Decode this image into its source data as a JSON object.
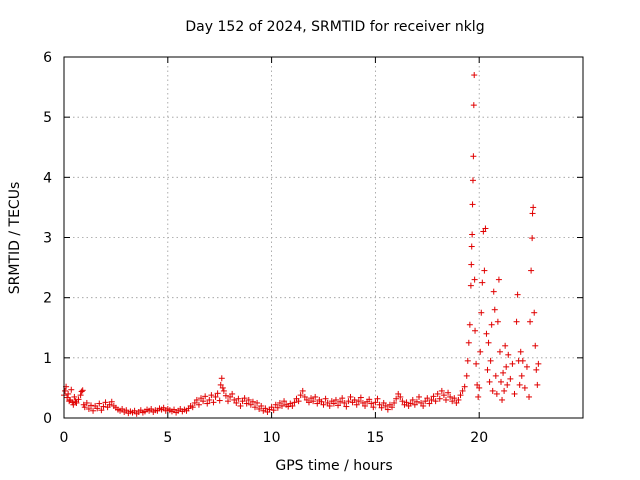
{
  "chart_data": {
    "type": "scatter",
    "title": "Day 152 of 2024, SRMTID for receiver nklg",
    "xlabel": "GPS time / hours",
    "ylabel": "SRMTID / TECUs",
    "xlim": [
      0,
      25
    ],
    "ylim": [
      0,
      6
    ],
    "xticks": [
      0,
      5,
      10,
      15,
      20
    ],
    "yticks": [
      0,
      1,
      2,
      3,
      4,
      5,
      6
    ],
    "grid": true,
    "marker": "+",
    "color": "#e00000",
    "series": [
      {
        "name": "SRMTID",
        "points": [
          [
            0.0,
            0.38
          ],
          [
            0.05,
            0.45
          ],
          [
            0.1,
            0.52
          ],
          [
            0.15,
            0.34
          ],
          [
            0.2,
            0.4
          ],
          [
            0.25,
            0.28
          ],
          [
            0.3,
            0.3
          ],
          [
            0.35,
            0.47
          ],
          [
            0.4,
            0.26
          ],
          [
            0.45,
            0.22
          ],
          [
            0.5,
            0.35
          ],
          [
            0.55,
            0.28
          ],
          [
            0.6,
            0.25
          ],
          [
            0.7,
            0.31
          ],
          [
            0.8,
            0.38
          ],
          [
            0.85,
            0.44
          ],
          [
            0.9,
            0.46
          ],
          [
            0.95,
            0.22
          ],
          [
            1.0,
            0.18
          ],
          [
            1.1,
            0.25
          ],
          [
            1.2,
            0.15
          ],
          [
            1.3,
            0.21
          ],
          [
            1.4,
            0.12
          ],
          [
            1.5,
            0.2
          ],
          [
            1.6,
            0.16
          ],
          [
            1.7,
            0.24
          ],
          [
            1.8,
            0.13
          ],
          [
            1.9,
            0.19
          ],
          [
            2.0,
            0.26
          ],
          [
            2.1,
            0.18
          ],
          [
            2.2,
            0.22
          ],
          [
            2.3,
            0.27
          ],
          [
            2.4,
            0.2
          ],
          [
            2.5,
            0.17
          ],
          [
            2.6,
            0.14
          ],
          [
            2.7,
            0.12
          ],
          [
            2.8,
            0.15
          ],
          [
            2.9,
            0.1
          ],
          [
            3.0,
            0.13
          ],
          [
            3.1,
            0.08
          ],
          [
            3.2,
            0.11
          ],
          [
            3.3,
            0.09
          ],
          [
            3.4,
            0.12
          ],
          [
            3.5,
            0.07
          ],
          [
            3.6,
            0.1
          ],
          [
            3.7,
            0.13
          ],
          [
            3.8,
            0.09
          ],
          [
            3.9,
            0.11
          ],
          [
            4.0,
            0.14
          ],
          [
            4.1,
            0.12
          ],
          [
            4.2,
            0.15
          ],
          [
            4.3,
            0.1
          ],
          [
            4.4,
            0.13
          ],
          [
            4.5,
            0.12
          ],
          [
            4.6,
            0.16
          ],
          [
            4.7,
            0.14
          ],
          [
            4.8,
            0.17
          ],
          [
            4.9,
            0.12
          ],
          [
            5.0,
            0.15
          ],
          [
            5.1,
            0.13
          ],
          [
            5.2,
            0.11
          ],
          [
            5.3,
            0.14
          ],
          [
            5.4,
            0.09
          ],
          [
            5.5,
            0.12
          ],
          [
            5.6,
            0.15
          ],
          [
            5.7,
            0.11
          ],
          [
            5.8,
            0.14
          ],
          [
            5.9,
            0.12
          ],
          [
            6.0,
            0.16
          ],
          [
            6.1,
            0.2
          ],
          [
            6.2,
            0.18
          ],
          [
            6.3,
            0.25
          ],
          [
            6.4,
            0.3
          ],
          [
            6.5,
            0.22
          ],
          [
            6.6,
            0.33
          ],
          [
            6.7,
            0.28
          ],
          [
            6.8,
            0.36
          ],
          [
            6.9,
            0.24
          ],
          [
            7.0,
            0.3
          ],
          [
            7.1,
            0.38
          ],
          [
            7.2,
            0.26
          ],
          [
            7.3,
            0.35
          ],
          [
            7.4,
            0.41
          ],
          [
            7.5,
            0.29
          ],
          [
            7.55,
            0.55
          ],
          [
            7.6,
            0.66
          ],
          [
            7.65,
            0.5
          ],
          [
            7.7,
            0.45
          ],
          [
            7.8,
            0.37
          ],
          [
            7.9,
            0.28
          ],
          [
            8.0,
            0.35
          ],
          [
            8.1,
            0.4
          ],
          [
            8.2,
            0.3
          ],
          [
            8.3,
            0.25
          ],
          [
            8.4,
            0.32
          ],
          [
            8.5,
            0.2
          ],
          [
            8.6,
            0.28
          ],
          [
            8.7,
            0.33
          ],
          [
            8.8,
            0.24
          ],
          [
            8.9,
            0.3
          ],
          [
            9.0,
            0.22
          ],
          [
            9.1,
            0.27
          ],
          [
            9.2,
            0.18
          ],
          [
            9.3,
            0.25
          ],
          [
            9.4,
            0.15
          ],
          [
            9.5,
            0.2
          ],
          [
            9.6,
            0.12
          ],
          [
            9.7,
            0.16
          ],
          [
            9.8,
            0.1
          ],
          [
            9.9,
            0.14
          ],
          [
            10.0,
            0.18
          ],
          [
            10.1,
            0.13
          ],
          [
            10.2,
            0.22
          ],
          [
            10.3,
            0.17
          ],
          [
            10.4,
            0.25
          ],
          [
            10.5,
            0.2
          ],
          [
            10.6,
            0.28
          ],
          [
            10.7,
            0.22
          ],
          [
            10.8,
            0.19
          ],
          [
            10.9,
            0.24
          ],
          [
            11.0,
            0.2
          ],
          [
            11.1,
            0.26
          ],
          [
            11.2,
            0.32
          ],
          [
            11.3,
            0.28
          ],
          [
            11.4,
            0.38
          ],
          [
            11.5,
            0.45
          ],
          [
            11.6,
            0.35
          ],
          [
            11.7,
            0.3
          ],
          [
            11.8,
            0.26
          ],
          [
            11.9,
            0.33
          ],
          [
            12.0,
            0.28
          ],
          [
            12.1,
            0.35
          ],
          [
            12.2,
            0.24
          ],
          [
            12.3,
            0.3
          ],
          [
            12.4,
            0.27
          ],
          [
            12.5,
            0.22
          ],
          [
            12.6,
            0.32
          ],
          [
            12.7,
            0.25
          ],
          [
            12.8,
            0.2
          ],
          [
            12.9,
            0.28
          ],
          [
            13.0,
            0.24
          ],
          [
            13.1,
            0.3
          ],
          [
            13.2,
            0.21
          ],
          [
            13.3,
            0.27
          ],
          [
            13.4,
            0.33
          ],
          [
            13.5,
            0.25
          ],
          [
            13.6,
            0.19
          ],
          [
            13.7,
            0.28
          ],
          [
            13.8,
            0.35
          ],
          [
            13.9,
            0.26
          ],
          [
            14.0,
            0.3
          ],
          [
            14.1,
            0.22
          ],
          [
            14.2,
            0.28
          ],
          [
            14.3,
            0.34
          ],
          [
            14.4,
            0.25
          ],
          [
            14.5,
            0.2
          ],
          [
            14.6,
            0.27
          ],
          [
            14.7,
            0.31
          ],
          [
            14.8,
            0.24
          ],
          [
            14.9,
            0.18
          ],
          [
            15.0,
            0.26
          ],
          [
            15.1,
            0.32
          ],
          [
            15.2,
            0.22
          ],
          [
            15.3,
            0.17
          ],
          [
            15.4,
            0.25
          ],
          [
            15.5,
            0.2
          ],
          [
            15.6,
            0.14
          ],
          [
            15.7,
            0.22
          ],
          [
            15.8,
            0.18
          ],
          [
            15.9,
            0.25
          ],
          [
            16.0,
            0.32
          ],
          [
            16.1,
            0.4
          ],
          [
            16.2,
            0.35
          ],
          [
            16.3,
            0.28
          ],
          [
            16.4,
            0.22
          ],
          [
            16.5,
            0.26
          ],
          [
            16.6,
            0.2
          ],
          [
            16.7,
            0.24
          ],
          [
            16.8,
            0.3
          ],
          [
            16.9,
            0.22
          ],
          [
            17.0,
            0.27
          ],
          [
            17.1,
            0.35
          ],
          [
            17.2,
            0.25
          ],
          [
            17.3,
            0.2
          ],
          [
            17.4,
            0.28
          ],
          [
            17.5,
            0.33
          ],
          [
            17.6,
            0.24
          ],
          [
            17.7,
            0.3
          ],
          [
            17.8,
            0.36
          ],
          [
            17.9,
            0.28
          ],
          [
            18.0,
            0.4
          ],
          [
            18.1,
            0.32
          ],
          [
            18.2,
            0.45
          ],
          [
            18.3,
            0.38
          ],
          [
            18.4,
            0.3
          ],
          [
            18.5,
            0.42
          ],
          [
            18.6,
            0.35
          ],
          [
            18.7,
            0.28
          ],
          [
            18.8,
            0.33
          ],
          [
            18.9,
            0.25
          ],
          [
            19.0,
            0.3
          ],
          [
            19.1,
            0.38
          ],
          [
            19.2,
            0.45
          ],
          [
            19.3,
            0.52
          ],
          [
            19.4,
            0.7
          ],
          [
            19.45,
            0.95
          ],
          [
            19.5,
            1.25
          ],
          [
            19.55,
            1.55
          ],
          [
            19.6,
            2.2
          ],
          [
            19.62,
            2.55
          ],
          [
            19.64,
            2.85
          ],
          [
            19.66,
            3.05
          ],
          [
            19.68,
            3.55
          ],
          [
            19.7,
            3.95
          ],
          [
            19.72,
            4.35
          ],
          [
            19.74,
            5.2
          ],
          [
            19.76,
            5.7
          ],
          [
            19.78,
            2.3
          ],
          [
            19.8,
            1.45
          ],
          [
            19.85,
            0.9
          ],
          [
            19.9,
            0.55
          ],
          [
            19.95,
            0.35
          ],
          [
            20.0,
            0.5
          ],
          [
            20.05,
            1.1
          ],
          [
            20.1,
            1.75
          ],
          [
            20.15,
            2.25
          ],
          [
            20.2,
            3.1
          ],
          [
            20.25,
            2.45
          ],
          [
            20.3,
            3.15
          ],
          [
            20.35,
            1.4
          ],
          [
            20.4,
            0.8
          ],
          [
            20.45,
            1.25
          ],
          [
            20.5,
            0.6
          ],
          [
            20.55,
            0.95
          ],
          [
            20.6,
            1.55
          ],
          [
            20.65,
            0.45
          ],
          [
            20.7,
            2.1
          ],
          [
            20.75,
            1.8
          ],
          [
            20.8,
            0.7
          ],
          [
            20.85,
            0.4
          ],
          [
            20.9,
            1.6
          ],
          [
            20.95,
            2.3
          ],
          [
            21.0,
            1.1
          ],
          [
            21.05,
            0.6
          ],
          [
            21.1,
            0.3
          ],
          [
            21.15,
            0.75
          ],
          [
            21.2,
            0.45
          ],
          [
            21.25,
            1.2
          ],
          [
            21.3,
            0.85
          ],
          [
            21.35,
            0.55
          ],
          [
            21.4,
            1.05
          ],
          [
            21.5,
            0.65
          ],
          [
            21.6,
            0.9
          ],
          [
            21.7,
            0.4
          ],
          [
            21.8,
            1.6
          ],
          [
            21.85,
            2.05
          ],
          [
            21.9,
            0.95
          ],
          [
            21.95,
            0.55
          ],
          [
            22.0,
            1.1
          ],
          [
            22.05,
            0.7
          ],
          [
            22.1,
            0.95
          ],
          [
            22.2,
            0.5
          ],
          [
            22.3,
            0.85
          ],
          [
            22.4,
            0.35
          ],
          [
            22.45,
            1.6
          ],
          [
            22.5,
            2.45
          ],
          [
            22.55,
            2.99
          ],
          [
            22.57,
            3.4
          ],
          [
            22.6,
            3.5
          ],
          [
            22.65,
            1.75
          ],
          [
            22.7,
            1.2
          ],
          [
            22.75,
            0.8
          ],
          [
            22.8,
            0.55
          ],
          [
            22.85,
            0.9
          ]
        ]
      }
    ]
  }
}
